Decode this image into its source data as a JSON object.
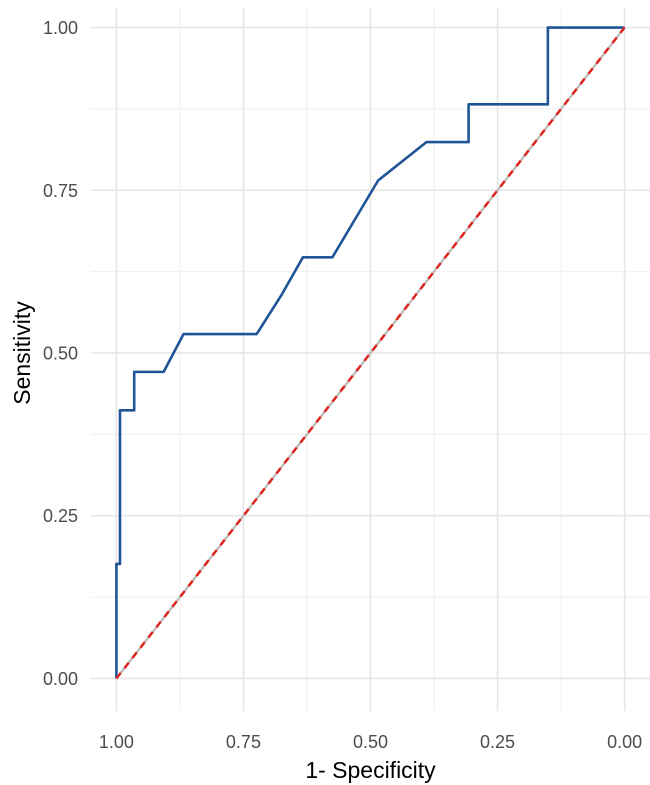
{
  "chart_data": {
    "type": "line",
    "title": "",
    "xlabel": "1- Specificity",
    "ylabel": "Sensitivity",
    "x_reversed": true,
    "xlim": [
      1.0,
      0.0
    ],
    "ylim": [
      0.0,
      1.0
    ],
    "x_ticks": [
      "1.00",
      "0.75",
      "0.50",
      "0.25",
      "0.00"
    ],
    "y_ticks": [
      "0.00",
      "0.25",
      "0.50",
      "0.75",
      "1.00"
    ],
    "x_tick_values": [
      1.0,
      0.75,
      0.5,
      0.25,
      0.0
    ],
    "y_tick_values": [
      0.0,
      0.25,
      0.5,
      0.75,
      1.0
    ],
    "grid": true,
    "series": [
      {
        "name": "",
        "color": "#1f5596",
        "style": "solid",
        "points": [
          [
            1.0,
            0.0
          ],
          [
            1.0,
            0.176
          ],
          [
            0.993,
            0.176
          ],
          [
            0.993,
            0.412
          ],
          [
            0.965,
            0.412
          ],
          [
            0.965,
            0.471
          ],
          [
            0.907,
            0.471
          ],
          [
            0.868,
            0.529
          ],
          [
            0.724,
            0.529
          ],
          [
            0.676,
            0.588
          ],
          [
            0.633,
            0.647
          ],
          [
            0.575,
            0.647
          ],
          [
            0.485,
            0.765
          ],
          [
            0.39,
            0.824
          ],
          [
            0.307,
            0.824
          ],
          [
            0.307,
            0.882
          ],
          [
            0.151,
            0.882
          ],
          [
            0.151,
            1.0
          ],
          [
            0.0,
            1.0
          ]
        ]
      },
      {
        "name": "",
        "color": "#bdbdbd",
        "style": "solid",
        "points": [
          [
            1.0,
            0.0
          ],
          [
            0.0,
            1.0
          ]
        ]
      },
      {
        "name": "",
        "color": "#e0201a",
        "style": "dashed",
        "points": [
          [
            1.0,
            0.0
          ],
          [
            0.0,
            1.0
          ]
        ]
      }
    ]
  }
}
